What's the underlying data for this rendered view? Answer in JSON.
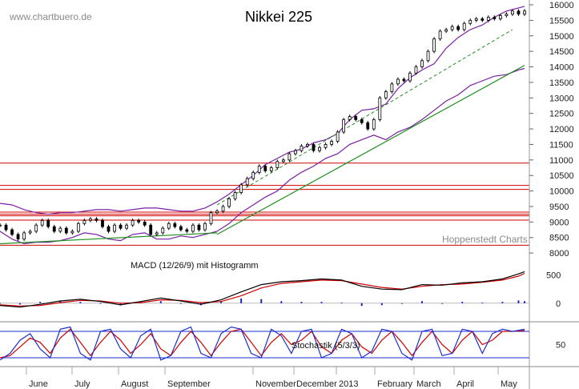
{
  "header": {
    "watermark": "www.chartbuero.de",
    "title": "Nikkei 225",
    "source_note": "Hoppenstedt Charts"
  },
  "colors": {
    "price": "#000000",
    "bollinger": "#7a1fa2",
    "horizontal_lines": "#d00000",
    "trend_up": "#1f8f1f",
    "trend_dashed": "#1f8f1f",
    "channel": "#1d2fcf",
    "macd_line": "#000000",
    "macd_signal": "#d00000",
    "macd_hist": "#2020c0",
    "stoch_k": "#1d2fcf",
    "stoch_d": "#d00000",
    "stoch_level": "#1d2fcf",
    "grid": "#aaaaaa"
  },
  "chart_data": [
    {
      "type": "line",
      "title": "Nikkei 225",
      "xlabel": "",
      "ylabel": "",
      "ylim": [
        7900,
        16000
      ],
      "yticks": [
        "16000",
        "15500",
        "15000",
        "14500",
        "14000",
        "13500",
        "13000",
        "12500",
        "12000",
        "11500",
        "11000",
        "10500",
        "10000",
        "9500",
        "9000",
        "8500",
        "8000"
      ],
      "months": [
        "June",
        "July",
        "August",
        "September",
        "November",
        "December",
        "2013",
        "February",
        "March",
        "April",
        "May"
      ],
      "horizontal_levels": [
        10900,
        10180,
        10050,
        9320,
        9250,
        9200,
        9060,
        8250
      ],
      "series": [
        {
          "name": "Nikkei 225",
          "x": [
            0,
            3,
            6,
            9,
            12,
            15,
            18,
            21,
            24,
            27,
            30,
            33,
            36,
            39,
            42,
            45,
            48,
            51,
            54,
            57,
            60,
            63,
            66,
            69,
            72,
            75,
            78,
            81,
            84,
            87,
            90,
            93,
            96,
            99,
            102,
            105,
            108,
            111,
            114,
            117,
            120,
            123,
            126,
            129,
            132,
            135,
            138,
            141,
            144,
            147,
            150,
            153,
            156,
            159,
            162,
            165,
            168,
            171,
            174,
            177,
            180,
            183,
            186,
            189,
            192,
            195,
            198,
            201,
            204,
            207,
            210,
            213,
            216,
            219,
            222,
            225,
            228,
            231,
            234,
            237,
            240,
            243,
            246,
            249,
            252,
            255,
            258,
            261
          ],
          "values": [
            8900,
            8750,
            8600,
            8450,
            8650,
            8700,
            8900,
            9050,
            8850,
            8700,
            8800,
            8650,
            8700,
            8950,
            9050,
            9100,
            9050,
            8850,
            8700,
            8900,
            8800,
            8900,
            9050,
            9000,
            8900,
            8600,
            8650,
            8800,
            8950,
            8850,
            8750,
            8700,
            8900,
            8750,
            8950,
            9300,
            9350,
            9500,
            9750,
            9950,
            10200,
            10400,
            10600,
            10800,
            10650,
            10750,
            10950,
            11000,
            11200,
            11300,
            11450,
            11500,
            11300,
            11400,
            11500,
            11600,
            11900,
            12300,
            12400,
            12300,
            12200,
            12000,
            12300,
            13000,
            13200,
            13450,
            13600,
            13550,
            13800,
            14000,
            14200,
            14500,
            14900,
            15150,
            15200,
            15300,
            15200,
            15400,
            15500,
            15550,
            15500,
            15600,
            15550,
            15650,
            15700,
            15800,
            15700,
            15800
          ]
        },
        {
          "name": "Bollinger upper",
          "x": [
            0,
            6,
            12,
            18,
            24,
            30,
            36,
            42,
            48,
            54,
            60,
            66,
            72,
            78,
            84,
            90,
            96,
            102,
            108,
            114,
            120,
            126,
            132,
            138,
            144,
            150,
            156,
            162,
            168,
            174,
            180,
            186,
            192,
            198,
            204,
            210,
            216,
            222,
            228,
            234,
            240,
            246,
            252,
            258,
            261
          ],
          "values": [
            9600,
            9550,
            9400,
            9300,
            9250,
            9300,
            9300,
            9350,
            9400,
            9400,
            9350,
            9400,
            9450,
            9450,
            9400,
            9350,
            9350,
            9450,
            9650,
            9900,
            10200,
            10500,
            10850,
            11050,
            11250,
            11350,
            11550,
            11650,
            11850,
            12300,
            12600,
            12650,
            12800,
            13300,
            13650,
            13900,
            14100,
            14600,
            14950,
            15200,
            15350,
            15600,
            15800,
            15900,
            15950
          ]
        },
        {
          "name": "Bollinger lower",
          "x": [
            0,
            6,
            12,
            18,
            24,
            30,
            36,
            42,
            48,
            54,
            60,
            66,
            72,
            78,
            84,
            90,
            96,
            102,
            108,
            114,
            120,
            126,
            132,
            138,
            144,
            150,
            156,
            162,
            168,
            174,
            180,
            186,
            192,
            198,
            204,
            210,
            216,
            222,
            228,
            234,
            240,
            246,
            252,
            258,
            261
          ],
          "values": [
            8700,
            8450,
            8300,
            8350,
            8350,
            8400,
            8500,
            8650,
            8600,
            8450,
            8400,
            8600,
            8650,
            8450,
            8450,
            8550,
            8500,
            8600,
            8700,
            8950,
            9300,
            9550,
            9800,
            10000,
            10350,
            10600,
            10800,
            11050,
            11200,
            11500,
            11650,
            11800,
            11650,
            11900,
            12050,
            12300,
            12600,
            12900,
            13100,
            13400,
            13550,
            13700,
            13750,
            13900,
            13950
          ]
        },
        {
          "name": "Upper trend (dashed)",
          "x": [
            108,
            255
          ],
          "values": [
            9550,
            15200
          ]
        },
        {
          "name": "Lower trend",
          "x": [
            108,
            261
          ],
          "values": [
            8600,
            14050
          ]
        },
        {
          "name": "Base support",
          "x": [
            0,
            108
          ],
          "values": [
            8300,
            8650
          ]
        }
      ]
    },
    {
      "type": "line",
      "title": "MACD (12/26/9) mit Histogramm",
      "xlabel": "",
      "ylabel": "",
      "ylim": [
        -330,
        750
      ],
      "yticks": [
        "500",
        "0"
      ],
      "series": [
        {
          "name": "MACD",
          "x": [
            0,
            10,
            20,
            30,
            40,
            50,
            60,
            70,
            80,
            90,
            100,
            110,
            120,
            130,
            140,
            150,
            160,
            170,
            180,
            190,
            200,
            210,
            220,
            230,
            240,
            250,
            258,
            261
          ],
          "values": [
            -40,
            -70,
            -20,
            40,
            70,
            30,
            -30,
            30,
            90,
            40,
            -20,
            60,
            200,
            330,
            380,
            400,
            430,
            410,
            300,
            250,
            240,
            330,
            320,
            360,
            380,
            430,
            520,
            560
          ]
        },
        {
          "name": "Signal",
          "x": [
            0,
            10,
            20,
            30,
            40,
            50,
            60,
            70,
            80,
            90,
            100,
            110,
            120,
            130,
            140,
            150,
            160,
            170,
            180,
            190,
            200,
            210,
            220,
            230,
            240,
            250,
            258,
            261
          ],
          "values": [
            -30,
            -50,
            -40,
            10,
            50,
            40,
            0,
            10,
            60,
            50,
            10,
            30,
            130,
            270,
            350,
            380,
            410,
            400,
            340,
            280,
            250,
            300,
            330,
            340,
            370,
            410,
            480,
            530
          ]
        }
      ]
    },
    {
      "type": "line",
      "title": "Stochastik (5/3/3)",
      "xlabel": "",
      "ylabel": "",
      "ylim": [
        0,
        100
      ],
      "yticks": [
        "50"
      ],
      "levels": [
        80,
        20
      ],
      "series": [
        {
          "name": "%K",
          "x": [
            0,
            5,
            10,
            15,
            20,
            25,
            30,
            35,
            40,
            45,
            50,
            55,
            60,
            65,
            70,
            75,
            80,
            85,
            90,
            95,
            100,
            105,
            110,
            115,
            120,
            125,
            130,
            135,
            140,
            145,
            150,
            155,
            160,
            165,
            170,
            175,
            180,
            185,
            190,
            195,
            200,
            205,
            210,
            215,
            220,
            225,
            230,
            235,
            240,
            245,
            250,
            255,
            261
          ],
          "values": [
            15,
            30,
            60,
            75,
            40,
            20,
            85,
            90,
            30,
            15,
            80,
            85,
            40,
            20,
            70,
            85,
            15,
            25,
            80,
            90,
            30,
            20,
            75,
            90,
            85,
            30,
            20,
            85,
            70,
            30,
            80,
            85,
            20,
            30,
            85,
            75,
            20,
            35,
            85,
            80,
            30,
            15,
            80,
            85,
            25,
            30,
            85,
            80,
            30,
            75,
            85,
            80,
            85
          ]
        },
        {
          "name": "%D",
          "x": [
            0,
            5,
            10,
            15,
            20,
            25,
            30,
            35,
            40,
            45,
            50,
            55,
            60,
            65,
            70,
            75,
            80,
            85,
            90,
            95,
            100,
            105,
            110,
            115,
            120,
            125,
            130,
            135,
            140,
            145,
            150,
            155,
            160,
            165,
            170,
            175,
            180,
            185,
            190,
            195,
            200,
            205,
            210,
            215,
            220,
            225,
            230,
            235,
            240,
            245,
            250,
            255,
            261
          ],
          "values": [
            20,
            25,
            45,
            65,
            55,
            30,
            65,
            85,
            55,
            25,
            55,
            80,
            60,
            30,
            50,
            75,
            40,
            25,
            55,
            80,
            55,
            25,
            55,
            80,
            85,
            55,
            25,
            55,
            75,
            50,
            60,
            80,
            45,
            30,
            60,
            75,
            45,
            30,
            60,
            80,
            55,
            25,
            55,
            80,
            50,
            30,
            60,
            80,
            50,
            60,
            80,
            80,
            82
          ]
        }
      ]
    }
  ]
}
